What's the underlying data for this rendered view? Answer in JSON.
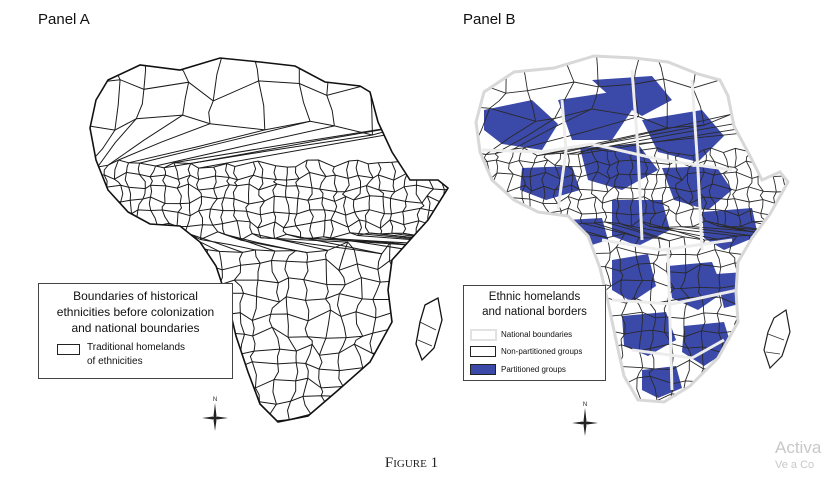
{
  "panel_a": {
    "title": "Panel A",
    "legend": {
      "title_lines": [
        "Boundaries of historical",
        "ethnicities before colonization",
        "and national boundaries"
      ],
      "item_lines": [
        "Traditional homelands",
        "of ethnicities"
      ]
    }
  },
  "panel_b": {
    "title": "Panel B",
    "legend": {
      "title_lines": [
        "Ethnic homelands",
        "and national borders"
      ],
      "items": [
        {
          "label": "National boundaries",
          "color": "#ffffff"
        },
        {
          "label": "Non-partitioned groups",
          "color": "#ffffff"
        },
        {
          "label": "Partitioned groups",
          "color": "#3b49a8"
        }
      ]
    },
    "colors": {
      "partitioned": "#3b49a8",
      "national_border": "#ececec",
      "ethnic_border": "#2a2a2a"
    }
  },
  "compass_label": "N",
  "caption": "Figure 1",
  "watermark": {
    "line1": "Activa",
    "line2": "Ve a Co"
  }
}
